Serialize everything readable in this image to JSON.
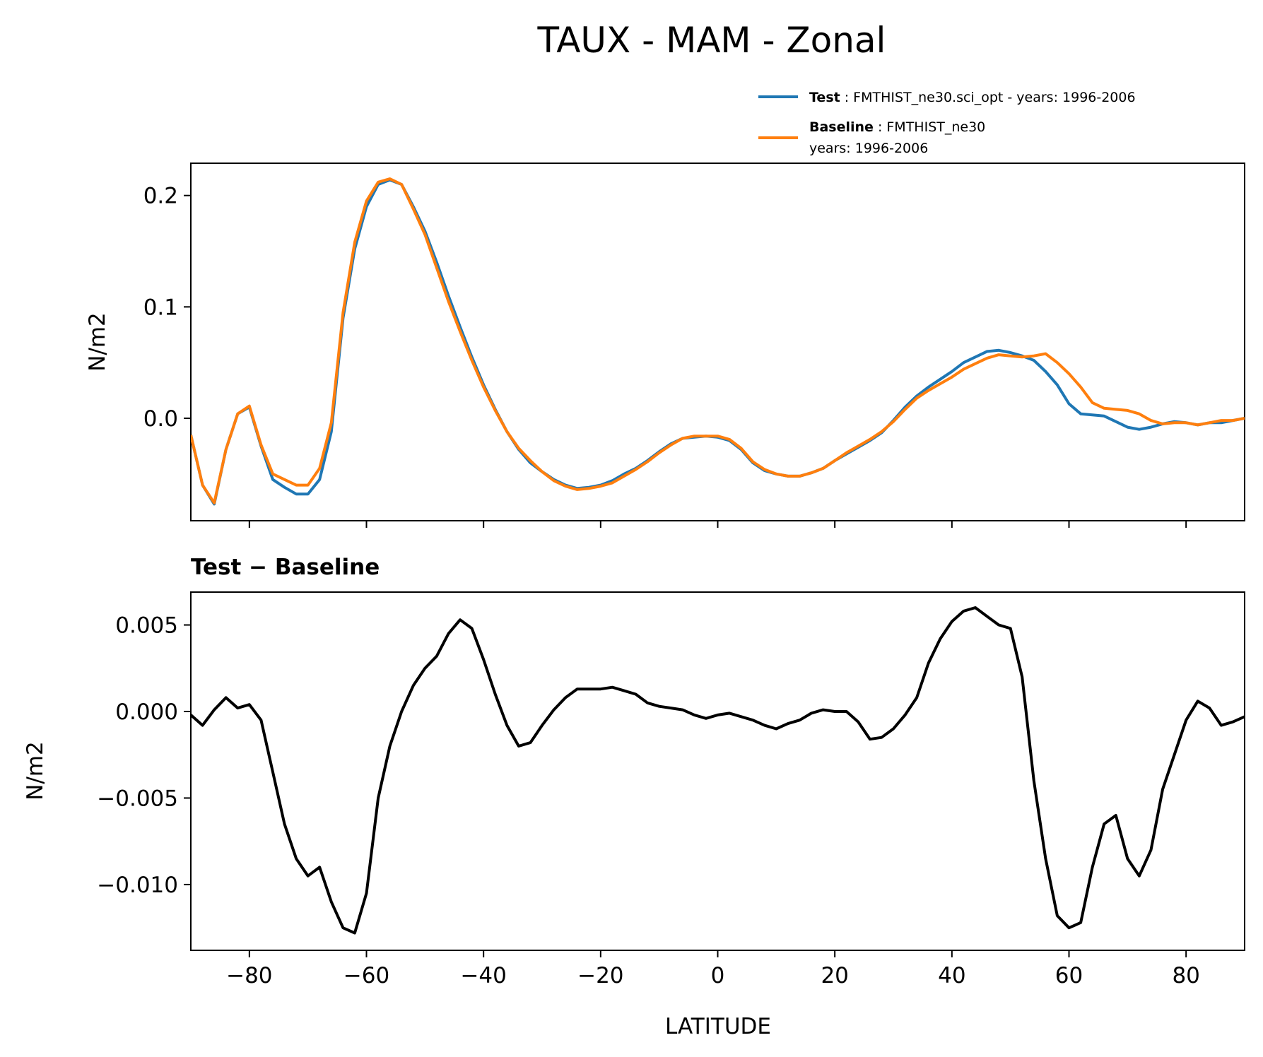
{
  "chart_data": [
    {
      "type": "line",
      "title": "TAUX - MAM - Zonal",
      "xlabel": "",
      "ylabel": "N/m2",
      "xlim": [
        -90,
        90
      ],
      "ylim": [
        -0.092,
        0.229
      ],
      "xticks": [
        -80,
        -60,
        -40,
        -20,
        0,
        20,
        40,
        60,
        80
      ],
      "yticks": [
        0.0,
        0.1,
        0.2
      ],
      "ytick_labels": [
        "0.0",
        "0.1",
        "0.2"
      ],
      "grid": false,
      "legend_position": "above-right",
      "legend": [
        {
          "name_bold": "Test",
          "text": ": FMTHIST_ne30.sci_opt - years: 1996-2006",
          "text2": "",
          "color": "#1f77b4"
        },
        {
          "name_bold": "Baseline",
          "text": ": FMTHIST_ne30",
          "text2": "years: 1996-2006",
          "color": "#ff7f0e"
        }
      ],
      "series": [
        {
          "name": "Test",
          "color": "#1f77b4",
          "x": [
            -90,
            -88,
            -86,
            -84,
            -82,
            -80,
            -78,
            -76,
            -74,
            -72,
            -70,
            -68,
            -66,
            -64,
            -62,
            -60,
            -58,
            -56,
            -54,
            -52,
            -50,
            -48,
            -46,
            -44,
            -42,
            -40,
            -38,
            -36,
            -34,
            -32,
            -30,
            -28,
            -26,
            -24,
            -22,
            -20,
            -18,
            -16,
            -14,
            -12,
            -10,
            -8,
            -6,
            -4,
            -2,
            0,
            2,
            4,
            6,
            8,
            10,
            12,
            14,
            16,
            18,
            20,
            22,
            24,
            26,
            28,
            30,
            32,
            34,
            36,
            38,
            40,
            42,
            44,
            46,
            48,
            50,
            52,
            54,
            56,
            58,
            60,
            62,
            64,
            66,
            68,
            70,
            72,
            74,
            76,
            78,
            80,
            82,
            84,
            86,
            88,
            90
          ],
          "y": [
            -0.015,
            -0.06,
            -0.077,
            -0.028,
            0.004,
            0.01,
            -0.025,
            -0.055,
            -0.062,
            -0.068,
            -0.068,
            -0.055,
            -0.012,
            0.09,
            0.152,
            0.19,
            0.21,
            0.214,
            0.21,
            0.19,
            0.168,
            0.14,
            0.11,
            0.082,
            0.055,
            0.03,
            0.008,
            -0.012,
            -0.028,
            -0.04,
            -0.048,
            -0.055,
            -0.06,
            -0.063,
            -0.062,
            -0.06,
            -0.056,
            -0.05,
            -0.045,
            -0.038,
            -0.03,
            -0.023,
            -0.018,
            -0.017,
            -0.016,
            -0.017,
            -0.02,
            -0.028,
            -0.04,
            -0.047,
            -0.05,
            -0.052,
            -0.052,
            -0.049,
            -0.045,
            -0.038,
            -0.032,
            -0.026,
            -0.02,
            -0.013,
            -0.002,
            0.01,
            0.02,
            0.028,
            0.035,
            0.042,
            0.05,
            0.055,
            0.06,
            0.061,
            0.059,
            0.056,
            0.052,
            0.042,
            0.03,
            0.013,
            0.004,
            0.003,
            0.002,
            -0.003,
            -0.008,
            -0.01,
            -0.008,
            -0.005,
            -0.003,
            -0.004,
            -0.006,
            -0.004,
            -0.004,
            -0.002,
            0.0
          ]
        },
        {
          "name": "Baseline",
          "color": "#ff7f0e",
          "x": [
            -90,
            -88,
            -86,
            -84,
            -82,
            -80,
            -78,
            -76,
            -74,
            -72,
            -70,
            -68,
            -66,
            -64,
            -62,
            -60,
            -58,
            -56,
            -54,
            -52,
            -50,
            -48,
            -46,
            -44,
            -42,
            -40,
            -38,
            -36,
            -34,
            -32,
            -30,
            -28,
            -26,
            -24,
            -22,
            -20,
            -18,
            -16,
            -14,
            -12,
            -10,
            -8,
            -6,
            -4,
            -2,
            0,
            2,
            4,
            6,
            8,
            10,
            12,
            14,
            16,
            18,
            20,
            22,
            24,
            26,
            28,
            30,
            32,
            34,
            36,
            38,
            40,
            42,
            44,
            46,
            48,
            50,
            52,
            54,
            56,
            58,
            60,
            62,
            64,
            66,
            68,
            70,
            72,
            74,
            76,
            78,
            80,
            82,
            84,
            86,
            88,
            90
          ],
          "y": [
            -0.015,
            -0.06,
            -0.076,
            -0.028,
            0.004,
            0.011,
            -0.024,
            -0.05,
            -0.055,
            -0.06,
            -0.06,
            -0.045,
            -0.004,
            0.095,
            0.158,
            0.195,
            0.212,
            0.215,
            0.21,
            0.188,
            0.165,
            0.135,
            0.105,
            0.078,
            0.052,
            0.028,
            0.007,
            -0.012,
            -0.027,
            -0.038,
            -0.048,
            -0.056,
            -0.061,
            -0.064,
            -0.063,
            -0.061,
            -0.058,
            -0.052,
            -0.046,
            -0.039,
            -0.031,
            -0.024,
            -0.018,
            -0.016,
            -0.016,
            -0.016,
            -0.019,
            -0.027,
            -0.039,
            -0.046,
            -0.05,
            -0.052,
            -0.052,
            -0.049,
            -0.045,
            -0.038,
            -0.031,
            -0.025,
            -0.019,
            -0.012,
            -0.003,
            0.008,
            0.018,
            0.025,
            0.031,
            0.037,
            0.044,
            0.049,
            0.054,
            0.057,
            0.056,
            0.055,
            0.056,
            0.058,
            0.05,
            0.04,
            0.028,
            0.014,
            0.009,
            0.008,
            0.007,
            0.004,
            -0.002,
            -0.005,
            -0.004,
            -0.004,
            -0.006,
            -0.004,
            -0.002,
            -0.002,
            0.0
          ]
        }
      ]
    },
    {
      "type": "line",
      "title": "Test − Baseline",
      "xlabel": "LATITUDE",
      "ylabel": "N/m2",
      "xlim": [
        -90,
        90
      ],
      "ylim": [
        -0.0138,
        0.0069
      ],
      "xticks": [
        -80,
        -60,
        -40,
        -20,
        0,
        20,
        40,
        60,
        80
      ],
      "xtick_labels": [
        "−80",
        "−60",
        "−40",
        "−20",
        "0",
        "20",
        "40",
        "60",
        "80"
      ],
      "yticks": [
        0.005,
        0.0,
        -0.005,
        -0.01
      ],
      "ytick_labels": [
        "0.005",
        "0.000",
        "−0.005",
        "−0.010"
      ],
      "grid": false,
      "series": [
        {
          "color": "#000000",
          "x": [
            -90,
            -88,
            -86,
            -84,
            -82,
            -80,
            -78,
            -76,
            -74,
            -72,
            -70,
            -68,
            -66,
            -64,
            -62,
            -60,
            -58,
            -56,
            -54,
            -52,
            -50,
            -48,
            -46,
            -44,
            -42,
            -40,
            -38,
            -36,
            -34,
            -32,
            -30,
            -28,
            -26,
            -24,
            -22,
            -20,
            -18,
            -16,
            -14,
            -12,
            -10,
            -8,
            -6,
            -4,
            -2,
            0,
            2,
            4,
            6,
            8,
            10,
            12,
            14,
            16,
            18,
            20,
            22,
            24,
            26,
            28,
            30,
            32,
            34,
            36,
            38,
            40,
            42,
            44,
            46,
            48,
            50,
            52,
            54,
            56,
            58,
            60,
            62,
            64,
            66,
            68,
            70,
            72,
            74,
            76,
            78,
            80,
            82,
            84,
            86,
            88,
            90
          ],
          "y": [
            -0.0002,
            -0.0008,
            0.0001,
            0.0008,
            0.0002,
            0.0004,
            -0.0005,
            -0.0035,
            -0.0065,
            -0.0085,
            -0.0095,
            -0.009,
            -0.011,
            -0.0125,
            -0.0128,
            -0.0105,
            -0.005,
            -0.002,
            0.0,
            0.0015,
            0.0025,
            0.0032,
            0.0045,
            0.0053,
            0.0048,
            0.003,
            0.001,
            -0.0008,
            -0.002,
            -0.0018,
            -0.0008,
            0.0001,
            0.0008,
            0.0013,
            0.0013,
            0.0013,
            0.0014,
            0.0012,
            0.001,
            0.0005,
            0.0003,
            0.0002,
            0.0001,
            -0.0002,
            -0.0004,
            -0.0002,
            -0.0001,
            -0.0003,
            -0.0005,
            -0.0008,
            -0.001,
            -0.0007,
            -0.0005,
            -0.0001,
            0.0001,
            0.0,
            0.0,
            -0.0006,
            -0.0016,
            -0.0015,
            -0.001,
            -0.0002,
            0.0008,
            0.0028,
            0.0042,
            0.0052,
            0.0058,
            0.006,
            0.0055,
            0.005,
            0.0048,
            0.002,
            -0.004,
            -0.0085,
            -0.0118,
            -0.0125,
            -0.0122,
            -0.009,
            -0.0065,
            -0.006,
            -0.0085,
            -0.0095,
            -0.008,
            -0.0045,
            -0.0025,
            -0.0005,
            0.0006,
            0.0002,
            -0.0008,
            -0.0006,
            -0.0003
          ]
        }
      ]
    }
  ]
}
